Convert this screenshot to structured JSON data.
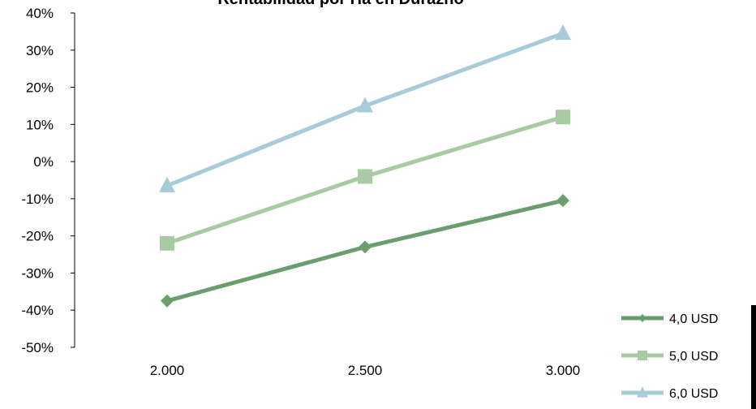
{
  "chart_data": {
    "type": "line",
    "title": "Rentabilidad por Ha en Durazno",
    "categories": [
      "2.000",
      "2.500",
      "3.000"
    ],
    "x": [
      2000,
      2500,
      3000
    ],
    "ylim": [
      -50,
      40
    ],
    "ytick_values": [
      40,
      30,
      20,
      10,
      0,
      -10,
      -20,
      -30,
      -40,
      -50
    ],
    "ytick_labels": [
      "40%",
      "30%",
      "20%",
      "10%",
      "0%",
      "-10%",
      "-20%",
      "-30%",
      "-40%",
      "-50%"
    ],
    "grid": false,
    "legend_position": "bottom-right",
    "series": [
      {
        "name": "4,0 USD",
        "values": [
          -37.5,
          -23.0,
          -10.5
        ],
        "color": "#6b9e6e",
        "marker": "diamond"
      },
      {
        "name": "5,0 USD",
        "values": [
          -22.0,
          -4.0,
          12.0
        ],
        "color": "#a9cba4",
        "marker": "square"
      },
      {
        "name": "6,0 USD",
        "values": [
          -6.5,
          15.0,
          34.5
        ],
        "color": "#a7ccd8",
        "marker": "triangle"
      }
    ]
  }
}
